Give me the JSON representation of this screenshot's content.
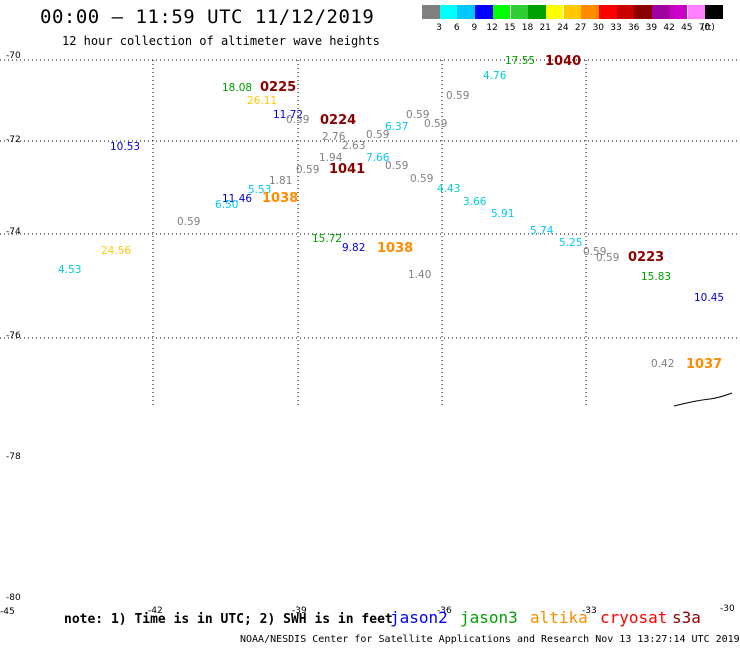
{
  "title": "00:00 – 11:59 UTC 11/12/2019",
  "subtitle": "12 hour collection of altimeter wave heights",
  "color_scale": {
    "colors": [
      "#808080",
      "#00ffff",
      "#00c8ff",
      "#0000ff",
      "#00ff00",
      "#32cd32",
      "#00a000",
      "#ffff00",
      "#ffc800",
      "#ff8c00",
      "#ff0000",
      "#c80000",
      "#8b0000",
      "#a000a0",
      "#c800c8",
      "#ff80ff",
      "#000000"
    ],
    "labels": [
      "3",
      "6",
      "9",
      "12",
      "15",
      "18",
      "21",
      "24",
      "27",
      "30",
      "33",
      "36",
      "39",
      "42",
      "45",
      "70"
    ],
    "unit": "(ft)"
  },
  "lat_labels": [
    "-70",
    "-72",
    "-74",
    "-76",
    "-78",
    "-80"
  ],
  "axis_ticks": [
    {
      "text": "-45"
    },
    {
      "text": "-42"
    },
    {
      "text": "-39"
    },
    {
      "text": "-36"
    },
    {
      "text": "-33"
    },
    {
      "text": "-30"
    }
  ],
  "observations": [
    {
      "text": "18.08",
      "color": "#00a000"
    },
    {
      "text": "0225",
      "color": "#8b0000",
      "big": true
    },
    {
      "text": "26.11",
      "color": "#ffc800"
    },
    {
      "text": "11.72",
      "color": "#0000cd"
    },
    {
      "text": "0.59",
      "color": "#808080"
    },
    {
      "text": "0224",
      "color": "#8b0000",
      "big": true
    },
    {
      "text": "2.76",
      "color": "#808080"
    },
    {
      "text": "0.59",
      "color": "#808080"
    },
    {
      "text": "2.63",
      "color": "#808080"
    },
    {
      "text": "6.37",
      "color": "#00c8ff"
    },
    {
      "text": "1.94",
      "color": "#808080"
    },
    {
      "text": "7.66",
      "color": "#00c8ff"
    },
    {
      "text": "0.59",
      "color": "#808080"
    },
    {
      "text": "1041",
      "color": "#8b0000",
      "big": true
    },
    {
      "text": "0.59",
      "color": "#808080"
    },
    {
      "text": "0.59",
      "color": "#808080"
    },
    {
      "text": "1.81",
      "color": "#808080"
    },
    {
      "text": "5.53",
      "color": "#00c8ff"
    },
    {
      "text": "11.46",
      "color": "#0000cd"
    },
    {
      "text": "6.50",
      "color": "#00c8ff"
    },
    {
      "text": "1038",
      "color": "#ff8c00",
      "big": true
    },
    {
      "text": "0.59",
      "color": "#808080"
    },
    {
      "text": "10.53",
      "color": "#0000cd"
    },
    {
      "text": "24.56",
      "color": "#ffc800"
    },
    {
      "text": "4.53",
      "color": "#00ced1"
    },
    {
      "text": "15.72",
      "color": "#00a000"
    },
    {
      "text": "9.82",
      "color": "#0000cd"
    },
    {
      "text": "1038",
      "color": "#ff8c00",
      "big": true
    },
    {
      "text": "1.40",
      "color": "#808080"
    },
    {
      "text": "17.55",
      "color": "#00a000"
    },
    {
      "text": "1040",
      "color": "#8b0000",
      "big": true
    },
    {
      "text": "4.76",
      "color": "#00ced1"
    },
    {
      "text": "0.59",
      "color": "#808080"
    },
    {
      "text": "0.59",
      "color": "#808080"
    },
    {
      "text": "0.59",
      "color": "#808080"
    },
    {
      "text": "4.43",
      "color": "#00ced1"
    },
    {
      "text": "3.66",
      "color": "#00ced1"
    },
    {
      "text": "5.91",
      "color": "#00c8ff"
    },
    {
      "text": "5.74",
      "color": "#00c8ff"
    },
    {
      "text": "5.25",
      "color": "#00c8ff"
    },
    {
      "text": "0.59",
      "color": "#808080"
    },
    {
      "text": "0.59",
      "color": "#808080"
    },
    {
      "text": "0223",
      "color": "#8b0000",
      "big": true
    },
    {
      "text": "15.83",
      "color": "#00a000"
    },
    {
      "text": "10.45",
      "color": "#0000cd"
    },
    {
      "text": "0.42",
      "color": "#808080"
    },
    {
      "text": "1037",
      "color": "#ff8c00",
      "big": true
    }
  ],
  "note": "note: 1) Time is in UTC; 2) SWH is in feet",
  "satellites": [
    {
      "name": "jason2",
      "color": "#0000ff"
    },
    {
      "name": "jason3",
      "color": "#00a000"
    },
    {
      "name": "altika",
      "color": "#ff8c00"
    },
    {
      "name": "cryosat",
      "color": "#ff0000"
    },
    {
      "name": "s3a",
      "color": "#8b0000"
    }
  ],
  "footer": "NOAA/NESDIS Center for Satellite Applications and Research   Nov 13 13:27:14 UTC 2019"
}
